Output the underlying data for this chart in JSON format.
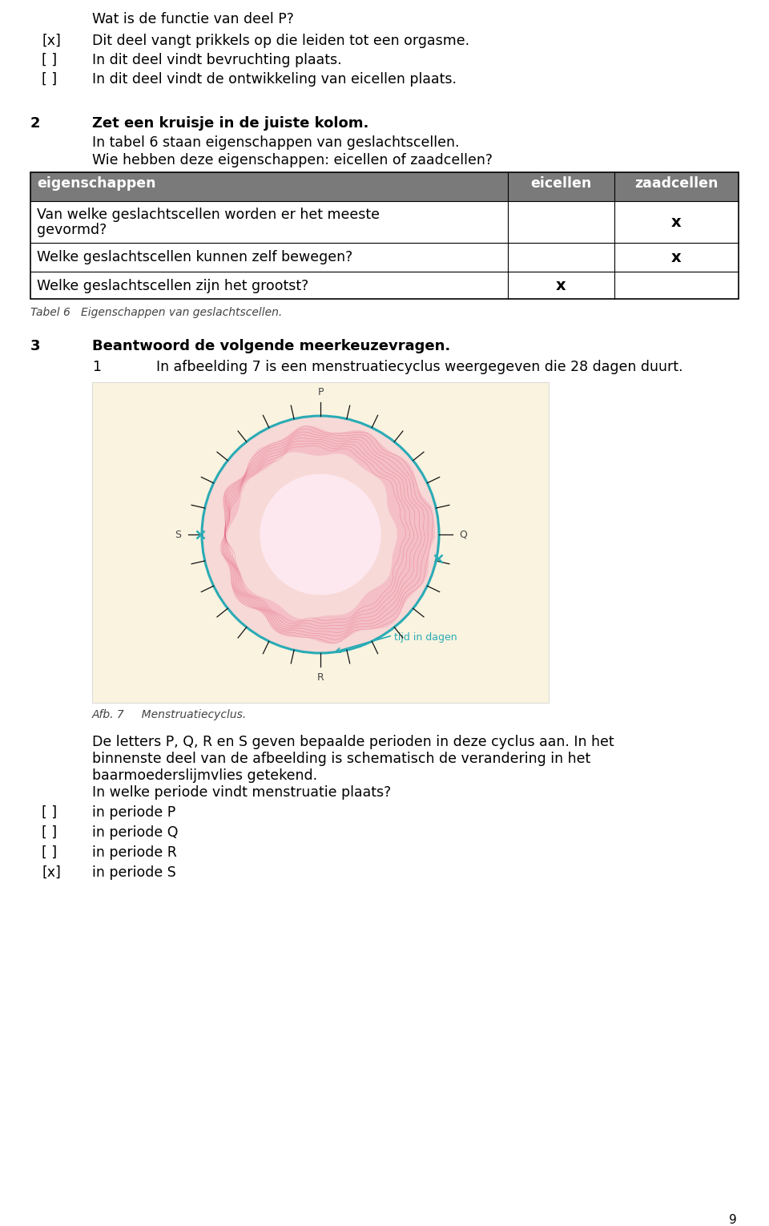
{
  "bg_color": "#ffffff",
  "page_number": "9",
  "top_section": {
    "question_text": "Wat is de functie van deel P?",
    "options": [
      {
        "bracket": "[x]",
        "bold": false,
        "text": "Dit deel vangt prikkels op die leiden tot een orgasme."
      },
      {
        "bracket": "[ ]",
        "bold": false,
        "text": "In dit deel vindt bevruchting plaats."
      },
      {
        "bracket": "[ ]",
        "bold": false,
        "text": "In dit deel vindt de ontwikkeling van eicellen plaats."
      }
    ]
  },
  "section2": {
    "number": "2",
    "title": "Zet een kruisje in de juiste kolom.",
    "subtitle1": "In tabel 6 staan eigenschappen van geslachtscellen.",
    "subtitle2": "Wie hebben deze eigenschappen: eicellen of zaadcellen?",
    "table": {
      "header": [
        "eigenschappen",
        "eicellen",
        "zaadcellen"
      ],
      "header_bg": "#7a7a7a",
      "header_text_color": "#ffffff",
      "row1_line1": "Van welke geslachtscellen worden er het meeste",
      "row1_line2": "gevormd?",
      "row2": "Welke geslachtscellen kunnen zelf bewegen?",
      "row3": "Welke geslachtscellen zijn het grootst?",
      "marks": [
        {
          "eicellen": "",
          "zaadcellen": "x"
        },
        {
          "eicellen": "",
          "zaadcellen": "x"
        },
        {
          "eicellen": "x",
          "zaadcellen": ""
        }
      ],
      "caption": "Tabel 6   Eigenschappen van geslachtscellen."
    }
  },
  "section3": {
    "number": "3",
    "title": "Beantwoord de volgende meerkeuzevragen.",
    "sub1_number": "1",
    "sub1_text": "In afbeelding 7 is een menstruatiecyclus weergegeven die 28 dagen duurt.",
    "image_caption": "Afb. 7     Menstruatiecyclus.",
    "description1": "De letters P, Q, R en S geven bepaalde perioden in deze cyclus aan. In het",
    "description2": "binnenste deel van de afbeelding is schematisch de verandering in het",
    "description3": "baarmoederslijmvlies getekend.",
    "question": "In welke periode vindt menstruatie plaats?",
    "options": [
      {
        "bracket": "[ ]",
        "bold": false,
        "text": "in periode P"
      },
      {
        "bracket": "[ ]",
        "bold": false,
        "text": "in periode Q"
      },
      {
        "bracket": "[ ]",
        "bold": false,
        "text": "in periode R"
      },
      {
        "bracket": "[x]",
        "bold": false,
        "text": "in periode S"
      }
    ]
  },
  "img_bg": "#faf3e0",
  "teal": "#2aabb5",
  "pink_light": "#f5c5d0",
  "pink_dark": "#e05070",
  "pink_medium": "#f090a8"
}
